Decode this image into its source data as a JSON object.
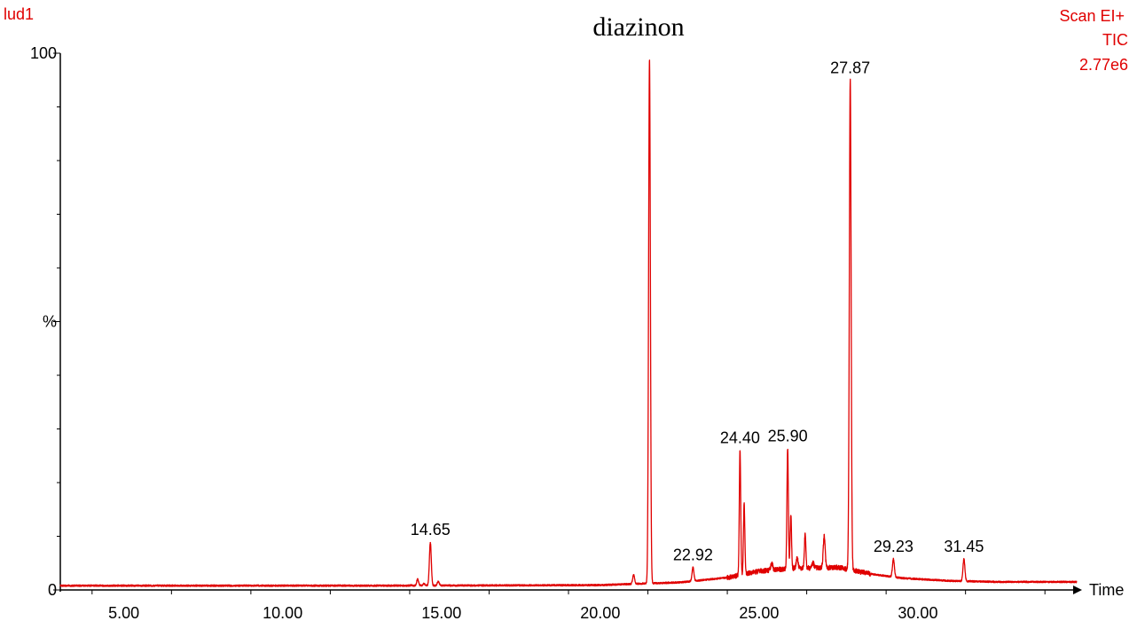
{
  "header": {
    "sample": "lud1",
    "scan": "Scan EI+",
    "trace": "TIC",
    "intensity": "2.77e6",
    "title": "diazinon"
  },
  "chart_data": {
    "type": "line",
    "title": "diazinon",
    "xlabel": "Time",
    "ylabel": "%",
    "xlim": [
      3.0,
      35.0
    ],
    "ylim": [
      0,
      100
    ],
    "x_ticks": [
      "5.00",
      "10.00",
      "15.00",
      "20.00",
      "25.00",
      "30.00"
    ],
    "x_tick_values": [
      5,
      10,
      15,
      20,
      25,
      30
    ],
    "y_ticks": [
      "0",
      "%",
      "100"
    ],
    "y_tick_values": [
      0,
      50,
      100
    ],
    "series": [
      {
        "color": "#e00000",
        "baseline": [
          [
            3.0,
            0.8
          ],
          [
            14.0,
            0.8
          ],
          [
            20.0,
            0.9
          ],
          [
            21.4,
            1.2
          ],
          [
            22.5,
            1.4
          ],
          [
            24.0,
            2.3
          ],
          [
            25.0,
            3.5
          ],
          [
            26.0,
            4.0
          ],
          [
            27.5,
            4.2
          ],
          [
            28.5,
            3.0
          ],
          [
            29.5,
            2.2
          ],
          [
            31.0,
            1.7
          ],
          [
            32.5,
            1.5
          ],
          [
            35.0,
            1.5
          ]
        ],
        "peaks": [
          [
            3.6,
            0.6
          ],
          [
            5.7,
            0.7
          ],
          [
            8.6,
            0.6
          ],
          [
            9.1,
            0.5
          ],
          [
            14.05,
            0.9
          ],
          [
            14.25,
            2.0
          ],
          [
            14.45,
            1.2
          ],
          [
            14.65,
            8.9
          ],
          [
            14.9,
            1.6
          ],
          [
            17.8,
            0.6
          ],
          [
            18.4,
            0.4
          ],
          [
            19.0,
            0.3
          ],
          [
            21.05,
            2.8
          ],
          [
            21.55,
            98.9
          ],
          [
            22.92,
            4.2
          ],
          [
            23.5,
            1.0
          ],
          [
            23.75,
            1.5
          ],
          [
            24.4,
            26.0
          ],
          [
            24.53,
            16.0
          ],
          [
            24.7,
            2.5
          ],
          [
            25.15,
            1.5
          ],
          [
            25.4,
            5.0
          ],
          [
            25.9,
            26.4
          ],
          [
            26.0,
            14.0
          ],
          [
            26.2,
            6.0
          ],
          [
            26.45,
            10.5
          ],
          [
            26.7,
            5.0
          ],
          [
            27.05,
            10.0
          ],
          [
            27.5,
            4.0
          ],
          [
            27.87,
            95.0
          ],
          [
            28.15,
            2.5
          ],
          [
            28.35,
            3.0
          ],
          [
            29.05,
            1.5
          ],
          [
            29.23,
            5.8
          ],
          [
            30.4,
            0.5
          ],
          [
            31.45,
            5.8
          ],
          [
            32.3,
            0.5
          ]
        ]
      }
    ],
    "peak_labels": [
      {
        "x": 14.65,
        "y": 8.9,
        "text": "14.65"
      },
      {
        "x": 22.92,
        "y": 4.2,
        "text": "22.92"
      },
      {
        "x": 24.4,
        "y": 26.0,
        "text": "24.40"
      },
      {
        "x": 25.9,
        "y": 26.4,
        "text": "25.90"
      },
      {
        "x": 27.87,
        "y": 95.0,
        "text": "27.87"
      },
      {
        "x": 29.23,
        "y": 5.8,
        "text": "29.23"
      },
      {
        "x": 31.45,
        "y": 5.8,
        "text": "31.45"
      }
    ]
  }
}
